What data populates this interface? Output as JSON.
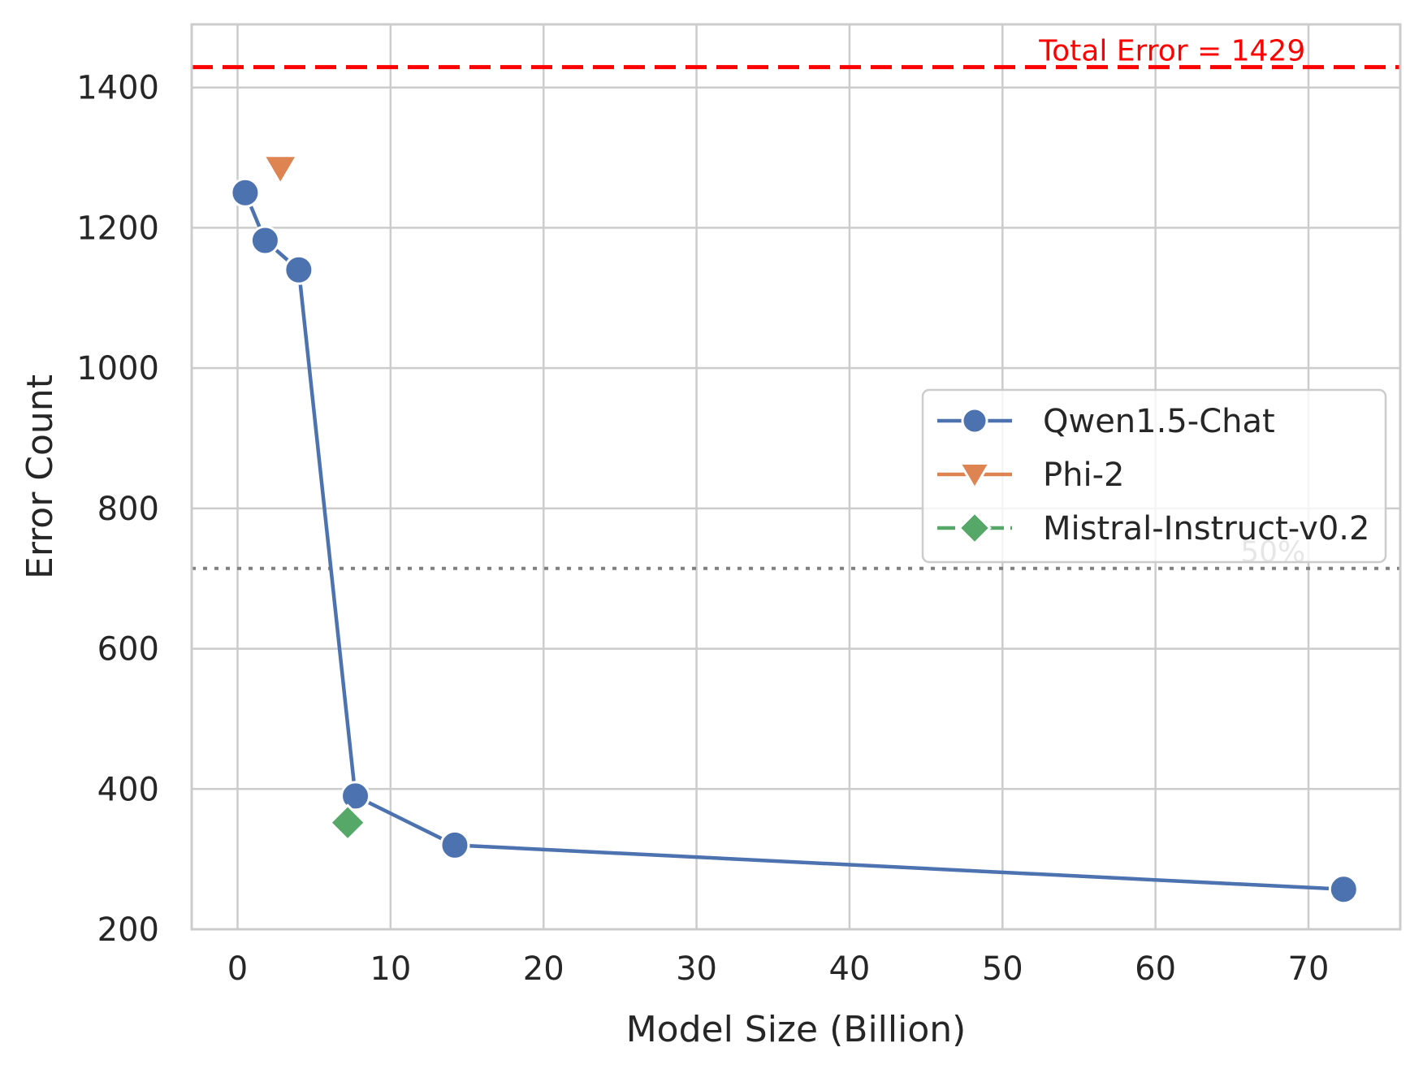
{
  "chart_data": {
    "type": "line",
    "xlabel": "Model Size (Billion)",
    "ylabel": "Error Count",
    "xlim": [
      -3,
      76
    ],
    "ylim": [
      200,
      1490
    ],
    "xticks": [
      0,
      10,
      20,
      30,
      40,
      50,
      60,
      70
    ],
    "yticks": [
      200,
      400,
      600,
      800,
      1000,
      1200,
      1400
    ],
    "grid": true,
    "legend_position": "center-right",
    "series": [
      {
        "name": "Qwen1.5-Chat",
        "color": "#4c72b0",
        "marker": "circle",
        "connected": true,
        "x": [
          0.5,
          1.8,
          4,
          7.7,
          14.2,
          72.3
        ],
        "y": [
          1250,
          1182,
          1140,
          390,
          320,
          257
        ]
      },
      {
        "name": "Phi-2",
        "color": "#dd8452",
        "marker": "triangle-down",
        "connected": true,
        "x": [
          2.8
        ],
        "y": [
          1285
        ]
      },
      {
        "name": "Mistral-Instruct-v0.2",
        "color": "#55a868",
        "marker": "diamond",
        "connected": true,
        "x": [
          7.2
        ],
        "y": [
          352
        ]
      }
    ],
    "reference_lines": [
      {
        "y": 1429,
        "color": "#ff0000",
        "style": "dashed",
        "label": "Total Error = 1429"
      },
      {
        "y": 714.5,
        "color": "#808080",
        "style": "dotted",
        "label": "50%"
      }
    ]
  }
}
